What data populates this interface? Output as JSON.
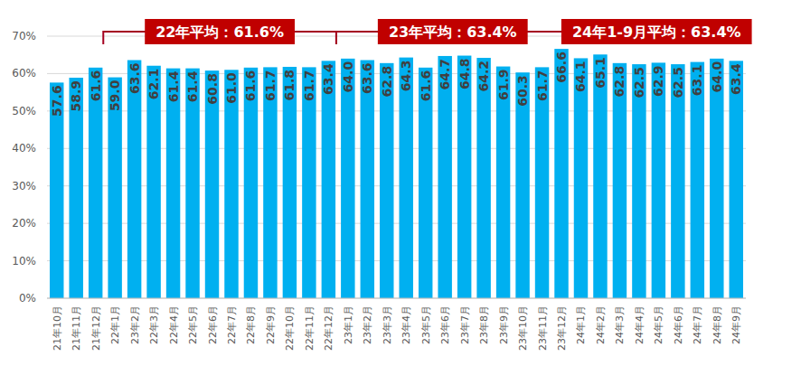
{
  "chart_data": {
    "type": "bar",
    "categories": [
      "21年10月",
      "21年11月",
      "21年12月",
      "22年1月",
      "23年2月",
      "22年3月",
      "22年4月",
      "22年5月",
      "22年6月",
      "22年7月",
      "22年8月",
      "22年9月",
      "22年10月",
      "22年11月",
      "22年12月",
      "23年1月",
      "23年2月",
      "23年3月",
      "23年4月",
      "23年5月",
      "23年6月",
      "23年7月",
      "23年8月",
      "23年9月",
      "23年10月",
      "23年11月",
      "23年12月",
      "24年1月",
      "24年2月",
      "24年3月",
      "24年4月",
      "24年5月",
      "24年6月",
      "24年7月",
      "24年8月",
      "24年9月"
    ],
    "values": [
      57.6,
      58.9,
      61.6,
      59.0,
      63.6,
      62.1,
      61.4,
      61.4,
      60.8,
      61.0,
      61.6,
      61.7,
      61.8,
      61.7,
      63.4,
      64.0,
      63.6,
      62.8,
      64.3,
      61.6,
      64.7,
      64.8,
      64.2,
      61.9,
      60.3,
      61.7,
      66.6,
      64.1,
      65.1,
      62.8,
      62.5,
      62.9,
      62.5,
      63.1,
      64.0,
      63.4
    ],
    "value_labels": [
      "57.6",
      "58.9",
      "61.6",
      "59.0",
      "63.6",
      "62.1",
      "61.4",
      "61.4",
      "60.8",
      "61.0",
      "61.6",
      "61.7",
      "61.8",
      "61.7",
      "63.4",
      "64.0",
      "63.6",
      "62.8",
      "64.3",
      "61.6",
      "64.7",
      "64.8",
      "64.2",
      "61.9",
      "60.3",
      "61.7",
      "66.6",
      "64.1",
      "65.1",
      "62.8",
      "62.5",
      "62.9",
      "62.5",
      "63.1",
      "64.0",
      "63.4"
    ],
    "color": "#00b0f0",
    "ylim": [
      0,
      70
    ],
    "yticks": [
      {
        "value": 0,
        "label": "0%"
      },
      {
        "value": 10,
        "label": "10%"
      },
      {
        "value": 20,
        "label": "20%"
      },
      {
        "value": 30,
        "label": "30%"
      },
      {
        "value": 40,
        "label": "40%"
      },
      {
        "value": 50,
        "label": "50%"
      },
      {
        "value": 60,
        "label": "60%"
      },
      {
        "value": 70,
        "label": "70%"
      }
    ],
    "grid": true,
    "data_labels": true,
    "annotations": [
      {
        "text": "22年平均：61.6%",
        "start": "22年1月",
        "end": "22年12月"
      },
      {
        "text": "23年平均：63.4%",
        "start": "23年1月",
        "end": "23年12月"
      },
      {
        "text": "24年1-9月平均：63.4%",
        "start": "24年1月",
        "end": "24年9月"
      }
    ]
  }
}
